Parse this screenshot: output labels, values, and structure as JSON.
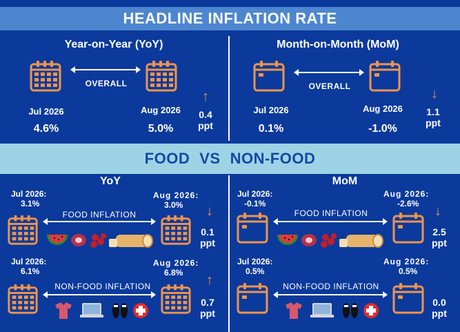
{
  "headline": {
    "title": "HEADLINE INFLATION RATE",
    "yoy": {
      "heading": "Year-on-Year (YoY)",
      "link_label": "OVERALL",
      "from_label": "Jul 2026",
      "from_value": "4.6%",
      "to_label": "Aug 2026",
      "to_value": "5.0%",
      "change": "0.4",
      "unit": "ppt",
      "direction": "up"
    },
    "mom": {
      "heading": "Month-on-Month (MoM)",
      "link_label": "OVERALL",
      "from_label": "Jul 2026",
      "from_value": "0.1%",
      "to_label": "Aug 2026",
      "to_value": "-1.0%",
      "change": "1.1",
      "unit": "ppt",
      "direction": "down"
    }
  },
  "food_vs_nonfood": {
    "title_left": "FOOD",
    "title_vs": "VS",
    "title_right": "NON-FOOD",
    "yoy": {
      "heading": "YoY",
      "food": {
        "label": "FOOD INFLATION",
        "from_label": "Jul 2026:",
        "from_value": "3.1%",
        "to_label": "Aug 2026:",
        "to_value": "3.0%",
        "change": "0.1",
        "unit": "ppt",
        "direction": "down"
      },
      "nonfood": {
        "label": "NON-FOOD INFLATION",
        "from_label": "Jul 2026:",
        "from_value": "6.1%",
        "to_label": "Aug 2026:",
        "to_value": "6.8%",
        "change": "0.7",
        "unit": "ppt",
        "direction": "up"
      }
    },
    "mom": {
      "heading": "MoM",
      "food": {
        "label": "FOOD INFLATION",
        "from_label": "Jul 2026:",
        "from_value": "-0.1%",
        "to_label": "Aug 2026:",
        "to_value": "-2.6%",
        "change": "2.5",
        "unit": "ppt",
        "direction": "down"
      },
      "nonfood": {
        "label": "NON-FOOD INFLATION",
        "from_label": "Jul 2026:",
        "from_value": "0.5%",
        "to_label": "Aug 2026:",
        "to_value": "0.5%",
        "change": "0.0",
        "unit": "ppt",
        "direction": "none"
      }
    }
  },
  "icons": {
    "calendar_grid": "calendar-grid-icon",
    "calendar_blank": "calendar-blank-icon",
    "food": [
      "watermelon-icon",
      "meat-icon",
      "berries-icon",
      "bread-icon"
    ],
    "nonfood": [
      "shirt-icon",
      "laptop-icon",
      "shoes-icon",
      "medical-cross-icon"
    ]
  },
  "colors": {
    "background": "#0b3a9c",
    "banner_top": "#4d86cf",
    "banner_mid": "#9ed3e6",
    "banner_mid_text": "#1747a6",
    "accent_orange": "#f0944a",
    "divider": "#ffffff"
  }
}
